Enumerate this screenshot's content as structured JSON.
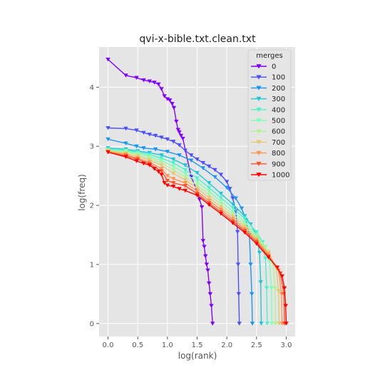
{
  "chart_data": {
    "type": "line",
    "title": "qvi-x-bible.txt.clean.txt",
    "xlabel": "log(rank)",
    "ylabel": "log(freq)",
    "xlim": [
      -0.15,
      3.15
    ],
    "ylim": [
      -0.22,
      4.68
    ],
    "xticks": [
      "0.0",
      "0.5",
      "1.0",
      "1.5",
      "2.0",
      "2.5",
      "3.0"
    ],
    "yticks": [
      "0",
      "1",
      "2",
      "3",
      "4"
    ],
    "grid": true,
    "legend": {
      "title": "merges",
      "placement": "top-right"
    },
    "series": [
      {
        "name": "0",
        "color": "#8000ff",
        "points": [
          [
            0,
            4.47
          ],
          [
            0.3,
            4.2
          ],
          [
            0.48,
            4.16
          ],
          [
            0.6,
            4.12
          ],
          [
            0.7,
            4.1
          ],
          [
            0.78,
            4.08
          ],
          [
            0.85,
            4.05
          ],
          [
            0.9,
            3.97
          ],
          [
            0.95,
            3.85
          ],
          [
            1.0,
            3.8
          ],
          [
            1.04,
            3.78
          ],
          [
            1.08,
            3.72
          ],
          [
            1.11,
            3.65
          ],
          [
            1.15,
            3.42
          ],
          [
            1.18,
            3.28
          ],
          [
            1.2,
            3.24
          ],
          [
            1.23,
            3.18
          ],
          [
            1.26,
            3.13
          ],
          [
            1.4,
            2.48
          ],
          [
            1.5,
            2.25
          ],
          [
            1.54,
            2.1
          ],
          [
            1.58,
            1.97
          ],
          [
            1.6,
            1.4
          ],
          [
            1.62,
            1.3
          ],
          [
            1.64,
            1.14
          ],
          [
            1.66,
            1.0
          ],
          [
            1.68,
            0.9
          ],
          [
            1.7,
            0.68
          ],
          [
            1.72,
            0.5
          ],
          [
            1.74,
            0.3
          ],
          [
            1.76,
            0.0
          ]
        ]
      },
      {
        "name": "100",
        "color": "#4c50fc",
        "points": [
          [
            0,
            3.31
          ],
          [
            0.3,
            3.3
          ],
          [
            0.48,
            3.27
          ],
          [
            0.6,
            3.23
          ],
          [
            0.7,
            3.2
          ],
          [
            0.8,
            3.18
          ],
          [
            0.9,
            3.15
          ],
          [
            1.0,
            3.12
          ],
          [
            1.1,
            3.08
          ],
          [
            1.2,
            3.02
          ],
          [
            1.3,
            2.93
          ],
          [
            1.4,
            2.85
          ],
          [
            1.5,
            2.78
          ],
          [
            1.6,
            2.72
          ],
          [
            1.7,
            2.66
          ],
          [
            1.8,
            2.6
          ],
          [
            1.9,
            2.52
          ],
          [
            2.0,
            2.4
          ],
          [
            2.05,
            2.28
          ],
          [
            2.1,
            2.12
          ],
          [
            2.15,
            1.9
          ],
          [
            2.18,
            1.55
          ],
          [
            2.19,
            1.0
          ],
          [
            2.2,
            0.5
          ],
          [
            2.21,
            0.0
          ]
        ]
      },
      {
        "name": "200",
        "color": "#1996f3",
        "points": [
          [
            0,
            3.12
          ],
          [
            0.3,
            3.05
          ],
          [
            0.48,
            3.0
          ],
          [
            0.6,
            2.97
          ],
          [
            0.8,
            2.95
          ],
          [
            1.0,
            2.91
          ],
          [
            1.2,
            2.85
          ],
          [
            1.4,
            2.76
          ],
          [
            1.6,
            2.63
          ],
          [
            1.8,
            2.48
          ],
          [
            2.0,
            2.3
          ],
          [
            2.15,
            2.12
          ],
          [
            2.25,
            1.95
          ],
          [
            2.32,
            1.75
          ],
          [
            2.38,
            1.5
          ],
          [
            2.4,
            1.0
          ],
          [
            2.42,
            0.5
          ],
          [
            2.43,
            0.0
          ]
        ]
      },
      {
        "name": "300",
        "color": "#1cc8d8",
        "points": [
          [
            0,
            2.97
          ],
          [
            0.3,
            2.95
          ],
          [
            0.5,
            2.92
          ],
          [
            0.7,
            2.89
          ],
          [
            0.9,
            2.85
          ],
          [
            1.1,
            2.78
          ],
          [
            1.3,
            2.68
          ],
          [
            1.5,
            2.55
          ],
          [
            1.7,
            2.38
          ],
          [
            1.9,
            2.2
          ],
          [
            2.1,
            2.02
          ],
          [
            2.3,
            1.82
          ],
          [
            2.4,
            1.68
          ],
          [
            2.5,
            1.5
          ],
          [
            2.55,
            1.2
          ],
          [
            2.57,
            0.7
          ],
          [
            2.58,
            0.0
          ]
        ]
      },
      {
        "name": "400",
        "color": "#4cf2ce",
        "points": [
          [
            0,
            2.95
          ],
          [
            0.3,
            2.93
          ],
          [
            0.5,
            2.9
          ],
          [
            0.7,
            2.86
          ],
          [
            0.9,
            2.8
          ],
          [
            1.1,
            2.72
          ],
          [
            1.3,
            2.6
          ],
          [
            1.5,
            2.46
          ],
          [
            1.7,
            2.3
          ],
          [
            1.9,
            2.13
          ],
          [
            2.1,
            1.96
          ],
          [
            2.3,
            1.78
          ],
          [
            2.5,
            1.55
          ],
          [
            2.6,
            1.38
          ],
          [
            2.65,
            1.1
          ],
          [
            2.67,
            0.6
          ],
          [
            2.68,
            0.0
          ]
        ]
      },
      {
        "name": "500",
        "color": "#80ffb4",
        "points": [
          [
            0,
            2.94
          ],
          [
            0.3,
            2.92
          ],
          [
            0.5,
            2.88
          ],
          [
            0.7,
            2.83
          ],
          [
            0.9,
            2.76
          ],
          [
            1.1,
            2.66
          ],
          [
            1.3,
            2.54
          ],
          [
            1.5,
            2.4
          ],
          [
            1.7,
            2.24
          ],
          [
            1.9,
            2.07
          ],
          [
            2.1,
            1.9
          ],
          [
            2.3,
            1.72
          ],
          [
            2.5,
            1.5
          ],
          [
            2.65,
            1.3
          ],
          [
            2.72,
            1.05
          ],
          [
            2.75,
            0.6
          ],
          [
            2.76,
            0.0
          ]
        ]
      },
      {
        "name": "600",
        "color": "#b2f296",
        "points": [
          [
            0,
            2.93
          ],
          [
            0.3,
            2.9
          ],
          [
            0.5,
            2.86
          ],
          [
            0.7,
            2.8
          ],
          [
            0.9,
            2.72
          ],
          [
            1.1,
            2.6
          ],
          [
            1.3,
            2.48
          ],
          [
            1.5,
            2.34
          ],
          [
            1.7,
            2.18
          ],
          [
            1.9,
            2.02
          ],
          [
            2.1,
            1.85
          ],
          [
            2.3,
            1.68
          ],
          [
            2.5,
            1.47
          ],
          [
            2.7,
            1.22
          ],
          [
            2.78,
            1.0
          ],
          [
            2.81,
            0.6
          ],
          [
            2.82,
            0.0
          ]
        ]
      },
      {
        "name": "700",
        "color": "#e6c873",
        "points": [
          [
            0,
            2.92
          ],
          [
            0.3,
            2.88
          ],
          [
            0.5,
            2.83
          ],
          [
            0.7,
            2.77
          ],
          [
            0.9,
            2.68
          ],
          [
            1.1,
            2.54
          ],
          [
            1.3,
            2.43
          ],
          [
            1.5,
            2.29
          ],
          [
            1.7,
            2.13
          ],
          [
            1.9,
            1.97
          ],
          [
            2.1,
            1.81
          ],
          [
            2.3,
            1.64
          ],
          [
            2.5,
            1.44
          ],
          [
            2.7,
            1.2
          ],
          [
            2.83,
            0.95
          ],
          [
            2.87,
            0.55
          ],
          [
            2.88,
            0.0
          ]
        ]
      },
      {
        "name": "800",
        "color": "#ff964f",
        "points": [
          [
            0,
            2.91
          ],
          [
            0.3,
            2.86
          ],
          [
            0.5,
            2.8
          ],
          [
            0.7,
            2.73
          ],
          [
            0.9,
            2.62
          ],
          [
            1.0,
            2.5
          ],
          [
            1.1,
            2.45
          ],
          [
            1.3,
            2.38
          ],
          [
            1.5,
            2.24
          ],
          [
            1.7,
            2.08
          ],
          [
            1.9,
            1.93
          ],
          [
            2.1,
            1.77
          ],
          [
            2.3,
            1.6
          ],
          [
            2.5,
            1.41
          ],
          [
            2.7,
            1.17
          ],
          [
            2.87,
            0.9
          ],
          [
            2.92,
            0.5
          ],
          [
            2.93,
            0.0
          ]
        ]
      },
      {
        "name": "900",
        "color": "#ff5028",
        "points": [
          [
            0,
            2.9
          ],
          [
            0.3,
            2.84
          ],
          [
            0.5,
            2.78
          ],
          [
            0.7,
            2.7
          ],
          [
            0.9,
            2.58
          ],
          [
            1.0,
            2.42
          ],
          [
            1.1,
            2.38
          ],
          [
            1.3,
            2.33
          ],
          [
            1.5,
            2.2
          ],
          [
            1.7,
            2.04
          ],
          [
            1.9,
            1.89
          ],
          [
            2.1,
            1.73
          ],
          [
            2.3,
            1.57
          ],
          [
            2.5,
            1.38
          ],
          [
            2.7,
            1.14
          ],
          [
            2.9,
            0.85
          ],
          [
            2.96,
            0.5
          ],
          [
            2.97,
            0.0
          ]
        ]
      },
      {
        "name": "1000",
        "color": "#ff0000",
        "points": [
          [
            0,
            2.9
          ],
          [
            0.3,
            2.82
          ],
          [
            0.48,
            2.75
          ],
          [
            0.6,
            2.71
          ],
          [
            0.7,
            2.68
          ],
          [
            0.78,
            2.62
          ],
          [
            0.85,
            2.57
          ],
          [
            0.9,
            2.52
          ],
          [
            0.95,
            2.38
          ],
          [
            1.0,
            2.34
          ],
          [
            1.1,
            2.32
          ],
          [
            1.2,
            2.28
          ],
          [
            1.3,
            2.25
          ],
          [
            1.5,
            2.17
          ],
          [
            1.7,
            2.01
          ],
          [
            1.9,
            1.86
          ],
          [
            2.1,
            1.7
          ],
          [
            2.3,
            1.54
          ],
          [
            2.5,
            1.35
          ],
          [
            2.7,
            1.12
          ],
          [
            2.85,
            0.95
          ],
          [
            2.93,
            0.8
          ],
          [
            2.97,
            0.6
          ],
          [
            2.99,
            0.3
          ],
          [
            3.0,
            0.0
          ]
        ]
      }
    ]
  }
}
